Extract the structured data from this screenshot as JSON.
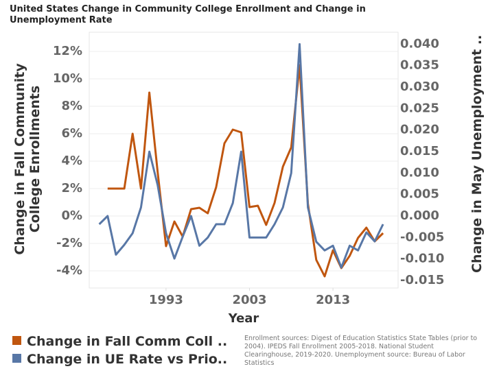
{
  "chart_data": {
    "type": "line",
    "title": "United States Change in Community College Enrollment and Change in Unemployment Rate",
    "x_label": "Year",
    "y_label": "Change in Fall Community College Enrollments",
    "y2_label": "Change in May Unemployment ..",
    "note": "Enrollment sources:  Digest of Education Statistics State Tables (prior to 2004). IPEDS Fall Enrollment 2005-2018. National Student Clearinghouse, 2019-2020.  Unemployment source: Bureau of Labor Statistics",
    "x": [
      1985,
      1986,
      1987,
      1988,
      1989,
      1990,
      1991,
      1992,
      1993,
      1994,
      1995,
      1996,
      1997,
      1998,
      1999,
      2000,
      2001,
      2002,
      2003,
      2004,
      2005,
      2006,
      2007,
      2008,
      2009,
      2010,
      2011,
      2012,
      2013,
      2014,
      2015,
      2016,
      2017,
      2018,
      2019
    ],
    "xlim": [
      1983.8,
      2020.8
    ],
    "xticks": [
      1993,
      2003,
      2013
    ],
    "ylim": [
      -5.25,
      13.25
    ],
    "yticks": [
      {
        "value": -4,
        "label": "-4%"
      },
      {
        "value": -2,
        "label": "-2%"
      },
      {
        "value": 0,
        "label": "0%"
      },
      {
        "value": 2,
        "label": "2%"
      },
      {
        "value": 4,
        "label": "4%"
      },
      {
        "value": 6,
        "label": "6%"
      },
      {
        "value": 8,
        "label": "8%"
      },
      {
        "value": 10,
        "label": "10%"
      },
      {
        "value": 12,
        "label": "12%"
      }
    ],
    "y2lim": [
      -0.01675,
      0.0423
    ],
    "y2ticks": [
      {
        "value": -0.015,
        "label": "-0.015"
      },
      {
        "value": -0.01,
        "label": "-0.010"
      },
      {
        "value": -0.005,
        "label": "-0.005"
      },
      {
        "value": 0,
        "label": "0.000"
      },
      {
        "value": 0.005,
        "label": "0.005"
      },
      {
        "value": 0.01,
        "label": "0.010"
      },
      {
        "value": 0.015,
        "label": "0.015"
      },
      {
        "value": 0.02,
        "label": "0.020"
      },
      {
        "value": 0.025,
        "label": "0.025"
      },
      {
        "value": 0.03,
        "label": "0.030"
      },
      {
        "value": 0.035,
        "label": "0.035"
      },
      {
        "value": 0.04,
        "label": "0.040"
      }
    ],
    "grid": true,
    "series": [
      {
        "name": "Change in Fall Comm Coll ..",
        "color": "#c0560f",
        "values": [
          null,
          2.0,
          2.0,
          2.0,
          6.0,
          2.0,
          9.0,
          3.2,
          -2.2,
          -0.4,
          -1.5,
          0.5,
          0.6,
          0.2,
          2.1,
          5.3,
          6.3,
          6.1,
          0.65,
          0.75,
          -0.65,
          0.95,
          3.6,
          5.0,
          11.0,
          0.9,
          -3.2,
          -4.4,
          -2.5,
          -3.8,
          -2.9,
          -1.6,
          -0.85,
          -1.85,
          -1.25
        ]
      },
      {
        "name": "Change in UE Rate vs Prio..",
        "color": "#5877a6",
        "axis": "y2",
        "values": [
          -0.0019,
          0.0,
          -0.009,
          -0.0067,
          -0.004,
          0.002,
          0.015,
          0.0072,
          -0.004,
          -0.0099,
          -0.0048,
          0.0,
          -0.0069,
          -0.005,
          -0.0019,
          -0.0019,
          0.003,
          0.015,
          -0.005,
          -0.005,
          -0.005,
          -0.0019,
          0.002,
          0.01,
          0.04,
          0.002,
          -0.006,
          -0.008,
          -0.0069,
          -0.012,
          -0.0069,
          -0.008,
          -0.0038,
          -0.0059,
          -0.0019
        ]
      }
    ]
  }
}
